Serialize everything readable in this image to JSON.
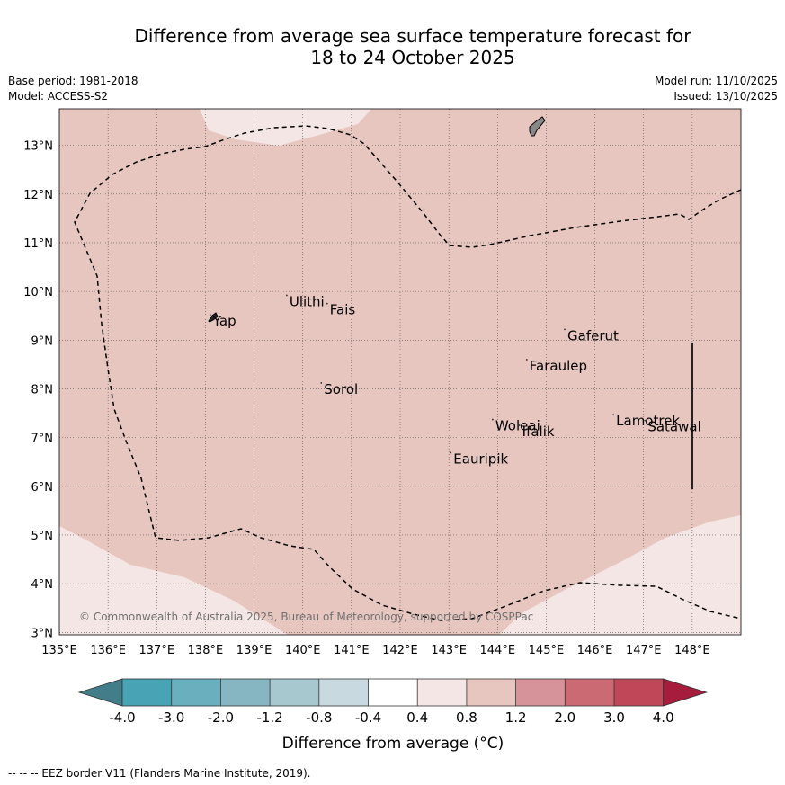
{
  "header": {
    "title_line1": "Difference from average sea surface temperature forecast for",
    "title_line2": "18 to 24 October 2025",
    "base_period": "Base period: 1981-2018",
    "model": "Model: ACCESS-S2",
    "model_run": "Model run: 11/10/2025",
    "issued": "Issued: 13/10/2025"
  },
  "map": {
    "lon_labels": [
      "135°E",
      "136°E",
      "137°E",
      "138°E",
      "139°E",
      "140°E",
      "141°E",
      "142°E",
      "143°E",
      "144°E",
      "145°E",
      "146°E",
      "147°E",
      "148°E"
    ],
    "lat_labels": [
      "3°N",
      "4°N",
      "5°N",
      "6°N",
      "7°N",
      "8°N",
      "9°N",
      "10°N",
      "11°N",
      "12°N",
      "13°N"
    ],
    "lon_range": [
      135,
      149
    ],
    "lat_range": [
      2.95,
      13.75
    ],
    "places": [
      {
        "name": "Yap",
        "lon": 138.1,
        "lat": 9.52
      },
      {
        "name": "Ulithi",
        "lon": 139.67,
        "lat": 9.92
      },
      {
        "name": "Fais",
        "lon": 140.5,
        "lat": 9.75
      },
      {
        "name": "Sorol",
        "lon": 140.38,
        "lat": 8.12
      },
      {
        "name": "Gaferut",
        "lon": 145.38,
        "lat": 9.22
      },
      {
        "name": "Faraulep",
        "lon": 144.6,
        "lat": 8.6
      },
      {
        "name": "Woleai",
        "lon": 143.9,
        "lat": 7.37
      },
      {
        "name": "Ifalik",
        "lon": 144.45,
        "lat": 7.25
      },
      {
        "name": "Lamotrek",
        "lon": 146.38,
        "lat": 7.47
      },
      {
        "name": "Satawal",
        "lon": 147.03,
        "lat": 7.35
      },
      {
        "name": "Eauripik",
        "lon": 143.04,
        "lat": 6.69
      }
    ],
    "copyright": "© Commonwealth of Australia 2025, Bureau of Meteorology, supported by COSPPac"
  },
  "legend": {
    "ticks": [
      "-4.0",
      "-3.0",
      "-2.0",
      "-1.2",
      "-0.8",
      "-0.4",
      "0.4",
      "0.8",
      "1.2",
      "2.0",
      "3.0",
      "4.0"
    ],
    "colors": [
      "#447d8a",
      "#48a3b4",
      "#6aafbe",
      "#87b6c3",
      "#a8c8d0",
      "#c8dadf",
      "#ffffff",
      "#f4e6e4",
      "#e8c6c0",
      "#d6939a",
      "#cc6a74",
      "#c04757",
      "#a51c3c"
    ],
    "label": "Difference from average (°C)"
  },
  "footnote": "-- -- -- EEZ border V11 (Flanders Marine Institute, 2019)."
}
